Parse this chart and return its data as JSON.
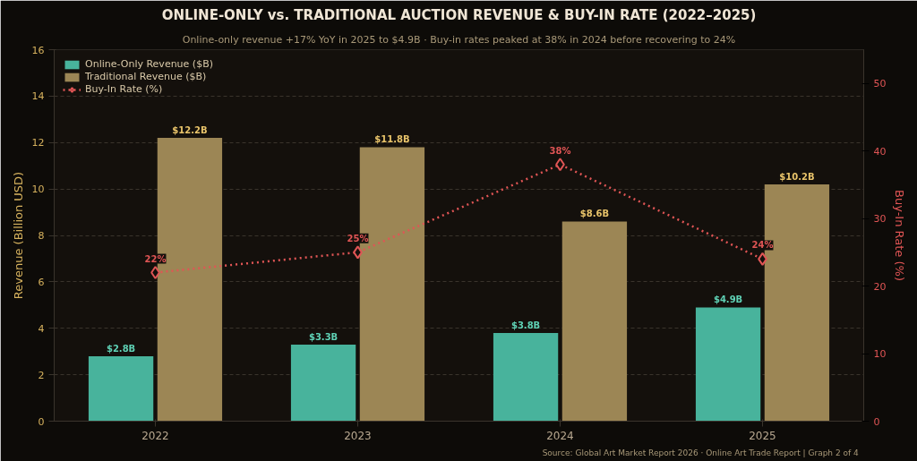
{
  "chart_data": {
    "type": "bar",
    "title": "ONLINE-ONLY vs. TRADITIONAL AUCTION REVENUE & BUY-IN RATE (2022–2025)",
    "subtitle": "Online-only revenue +17% YoY in 2025 to $4.9B · Buy-in rates peaked at 38% in 2024 before recovering to 24%",
    "ylabel": "Revenue (Billion USD)",
    "y2label": "Buy-In Rate (%)",
    "categories": [
      "2022",
      "2023",
      "2024",
      "2025"
    ],
    "series": [
      {
        "name": "Online-Only Revenue ($B)",
        "color": "#48b39c",
        "values": [
          2.8,
          3.3,
          3.8,
          4.9
        ],
        "value_labels": [
          "$2.8B",
          "$3.3B",
          "$3.8B",
          "$4.9B"
        ]
      },
      {
        "name": "Traditional Revenue ($B)",
        "color": "#9c8655",
        "values": [
          12.2,
          11.8,
          8.6,
          10.2
        ],
        "value_labels": [
          "$12.2B",
          "$11.8B",
          "$8.6B",
          "$10.2B"
        ]
      },
      {
        "name": "Buy-In Rate (%)",
        "type": "line",
        "axis": "y2",
        "color": "#e05555",
        "values": [
          22,
          25,
          38,
          24
        ],
        "value_labels": [
          "22%",
          "25%",
          "38%",
          "24%"
        ],
        "marker": "diamond",
        "line_style": "dotted"
      }
    ],
    "ylim": [
      0,
      16
    ],
    "yticks": [
      0,
      2,
      4,
      6,
      8,
      10,
      12,
      14,
      16
    ],
    "y2lim": [
      0,
      55
    ],
    "y2ticks": [
      0,
      10,
      20,
      30,
      40,
      50
    ],
    "grid": "y",
    "legend": "top left",
    "annotations": [
      "Source: Global Art Market Report 2026 · Online Art Trade Report  |  Graph 2 of 4"
    ]
  }
}
